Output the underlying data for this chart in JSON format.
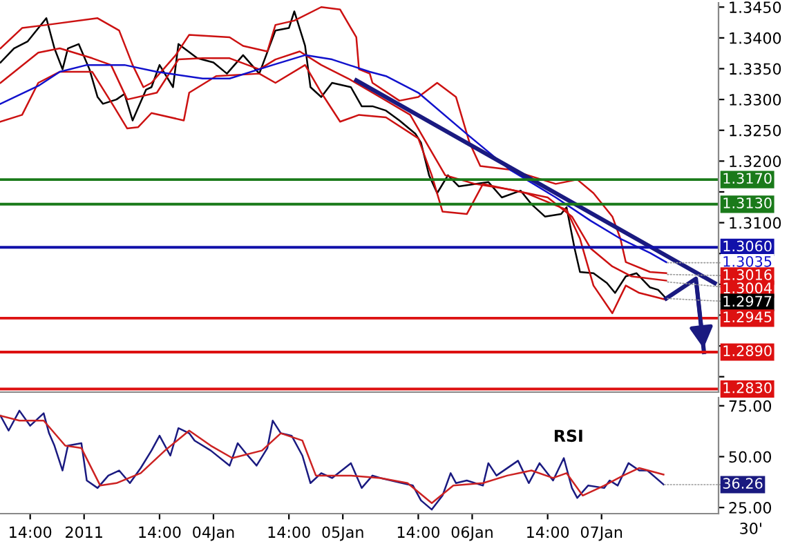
{
  "chart_data": [
    {
      "type": "line",
      "xlim": [
        "2011-01-02T08:24",
        "2011-01-07T21:42"
      ],
      "ylim": [
        1.2825,
        1.3457
      ],
      "tick_labels": "y",
      "yticks": [
        {
          "value": 1.345,
          "label": "1.3450"
        },
        {
          "value": 1.34,
          "label": "1.3400"
        },
        {
          "value": 1.335,
          "label": "1.3350"
        },
        {
          "value": 1.33,
          "label": "1.3300"
        },
        {
          "value": 1.325,
          "label": "1.3250"
        },
        {
          "value": 1.32,
          "label": "1.3200"
        },
        {
          "value": 1.315,
          "label": null
        },
        {
          "value": 1.31,
          "label": "1.3100"
        },
        {
          "value": 1.305,
          "label": null
        },
        {
          "value": 1.3,
          "label": null
        },
        {
          "value": 1.295,
          "label": null
        },
        {
          "value": 1.29,
          "label": null
        },
        {
          "value": 1.285,
          "label": null
        }
      ],
      "series": [
        {
          "color": "#000000",
          "x": [
            "2011-01-02T08:30",
            "2011-01-02T11:00",
            "2011-01-02T13:30",
            "2011-01-02T17:00",
            "2011-01-02T18:30",
            "2011-01-02T20:00",
            "2011-01-02T21:00",
            "2011-01-02T23:00",
            "2011-01-03T01:00",
            "2011-01-03T02:30",
            "2011-01-03T03:30",
            "2011-01-03T06:00",
            "2011-01-03T07:30",
            "2011-01-03T09:00",
            "2011-01-03T11:30",
            "2011-01-03T12:30",
            "2011-01-03T14:00",
            "2011-01-03T16:30",
            "2011-01-03T17:30",
            "2011-01-03T21:00",
            "2011-01-04T00:00",
            "2011-01-04T02:30",
            "2011-01-04T05:30",
            "2011-01-04T08:30",
            "2011-01-04T11:30",
            "2011-01-04T14:00",
            "2011-01-04T15:00",
            "2011-01-04T17:00",
            "2011-01-04T18:00",
            "2011-01-04T20:00",
            "2011-01-04T22:00",
            "2011-01-05T01:30",
            "2011-01-05T03:30",
            "2011-01-05T05:30",
            "2011-01-05T08:00",
            "2011-01-05T10:30",
            "2011-01-05T13:30",
            "2011-01-05T14:30",
            "2011-01-05T16:00",
            "2011-01-05T17:30",
            "2011-01-05T19:30",
            "2011-01-05T21:30",
            "2011-01-06T03:00",
            "2011-01-06T05:30",
            "2011-01-06T09:00",
            "2011-01-06T11:00",
            "2011-01-06T13:30",
            "2011-01-06T16:30",
            "2011-01-06T17:30",
            "2011-01-06T19:00",
            "2011-01-06T20:00",
            "2011-01-06T22:30",
            "2011-01-07T01:00",
            "2011-01-07T02:30",
            "2011-01-07T04:30",
            "2011-01-07T06:30",
            "2011-01-07T09:00",
            "2011-01-07T10:30",
            "2011-01-07T12:00"
          ],
          "values": [
            1.336,
            1.3383,
            1.3394,
            1.3432,
            1.3383,
            1.3349,
            1.3383,
            1.339,
            1.3349,
            1.3304,
            1.3293,
            1.33,
            1.3309,
            1.3266,
            1.3316,
            1.332,
            1.3356,
            1.332,
            1.339,
            1.3367,
            1.336,
            1.3342,
            1.3372,
            1.3342,
            1.3412,
            1.3416,
            1.3443,
            1.3387,
            1.332,
            1.3304,
            1.3327,
            1.332,
            1.3289,
            1.3289,
            1.3282,
            1.3266,
            1.3244,
            1.323,
            1.3177,
            1.3148,
            1.3177,
            1.3159,
            1.3166,
            1.3141,
            1.3152,
            1.313,
            1.311,
            1.3114,
            1.3125,
            1.3058,
            1.302,
            1.3018,
            1.3002,
            1.2986,
            1.3013,
            1.3018,
            1.2995,
            1.2991,
            1.2977
          ]
        },
        {
          "color": "#cc1111",
          "x": [
            "2011-01-02T08:30",
            "2011-01-02T12:30",
            "2011-01-02T17:00",
            "2011-01-03T02:30",
            "2011-01-03T06:30",
            "2011-01-03T09:00",
            "2011-01-03T11:00",
            "2011-01-03T12:30",
            "2011-01-03T17:00",
            "2011-01-03T19:30",
            "2011-01-04T03:00",
            "2011-01-04T05:30",
            "2011-01-04T10:00",
            "2011-01-04T11:30",
            "2011-01-04T15:00",
            "2011-01-04T20:00",
            "2011-01-04T23:30",
            "2011-01-05T02:30",
            "2011-01-05T03:00",
            "2011-01-05T05:00",
            "2011-01-05T05:30",
            "2011-01-05T10:30",
            "2011-01-05T14:00",
            "2011-01-05T17:30",
            "2011-01-05T21:00",
            "2011-01-05T23:30",
            "2011-01-06T01:30",
            "2011-01-06T07:00",
            "2011-01-06T15:30",
            "2011-01-06T19:30",
            "2011-01-06T22:30",
            "2011-01-07T02:00",
            "2011-01-07T03:30",
            "2011-01-07T04:30",
            "2011-01-07T09:00",
            "2011-01-07T12:00"
          ],
          "values": [
            1.3383,
            1.3416,
            1.3421,
            1.3432,
            1.3412,
            1.3356,
            1.332,
            1.3327,
            1.3372,
            1.3405,
            1.3401,
            1.3387,
            1.3378,
            1.3421,
            1.3428,
            1.345,
            1.3446,
            1.3401,
            1.3349,
            1.3342,
            1.3327,
            1.3298,
            1.3304,
            1.3327,
            1.3304,
            1.323,
            1.3192,
            1.3186,
            1.3163,
            1.317,
            1.3148,
            1.311,
            1.3074,
            1.3036,
            1.302,
            1.3018
          ]
        },
        {
          "color": "#cc1111",
          "x": [
            "2011-01-02T08:30",
            "2011-01-02T15:30",
            "2011-01-02T19:30",
            "2011-01-03T01:30",
            "2011-01-03T05:00",
            "2011-01-03T08:00",
            "2011-01-03T13:30",
            "2011-01-03T17:30",
            "2011-01-03T22:00",
            "2011-01-04T03:00",
            "2011-01-04T08:30",
            "2011-01-04T11:30",
            "2011-01-04T16:00",
            "2011-01-04T20:00",
            "2011-01-05T01:00",
            "2011-01-05T05:30",
            "2011-01-05T12:30",
            "2011-01-05T16:00",
            "2011-01-05T19:00",
            "2011-01-06T00:30",
            "2011-01-06T07:00",
            "2011-01-06T14:00",
            "2011-01-06T18:30",
            "2011-01-06T22:00",
            "2011-01-07T02:00",
            "2011-01-07T05:30",
            "2011-01-07T12:00"
          ],
          "values": [
            1.3327,
            1.3376,
            1.3383,
            1.3367,
            1.3356,
            1.33,
            1.3311,
            1.3365,
            1.3367,
            1.3367,
            1.3349,
            1.3365,
            1.3378,
            1.3356,
            1.3334,
            1.3311,
            1.3275,
            1.3222,
            1.3177,
            1.3163,
            1.3154,
            1.3141,
            1.311,
            1.3058,
            1.3029,
            1.3013,
            1.3006
          ]
        },
        {
          "color": "#cc1111",
          "x": [
            "2011-01-02T08:30",
            "2011-01-02T12:30",
            "2011-01-02T15:30",
            "2011-01-02T19:30",
            "2011-01-03T01:30",
            "2011-01-03T05:30",
            "2011-01-03T08:00",
            "2011-01-03T10:00",
            "2011-01-03T12:30",
            "2011-01-03T18:30",
            "2011-01-03T19:30",
            "2011-01-04T00:30",
            "2011-01-04T08:30",
            "2011-01-04T11:30",
            "2011-01-04T17:00",
            "2011-01-04T20:00",
            "2011-01-04T23:30",
            "2011-01-05T03:00",
            "2011-01-05T08:00",
            "2011-01-05T14:00",
            "2011-01-05T16:30",
            "2011-01-05T18:30",
            "2011-01-05T23:00",
            "2011-01-06T02:00",
            "2011-01-06T10:00",
            "2011-01-06T17:30",
            "2011-01-06T20:00",
            "2011-01-06T22:30",
            "2011-01-07T02:00",
            "2011-01-07T04:30",
            "2011-01-07T07:00",
            "2011-01-07T12:00"
          ],
          "values": [
            1.3264,
            1.3275,
            1.3327,
            1.3345,
            1.3345,
            1.3289,
            1.3253,
            1.3255,
            1.3278,
            1.3266,
            1.3311,
            1.3338,
            1.3342,
            1.3327,
            1.3356,
            1.3311,
            1.3264,
            1.3275,
            1.3271,
            1.3237,
            1.3177,
            1.3118,
            1.3114,
            1.3163,
            1.3148,
            1.3121,
            1.3074,
            1.2998,
            1.2953,
            1.2998,
            1.2986,
            1.2975
          ]
        },
        {
          "color": "#1111cc",
          "x": [
            "2011-01-02T08:30",
            "2011-01-02T15:30",
            "2011-01-02T19:30",
            "2011-01-03T00:30",
            "2011-01-03T07:30",
            "2011-01-03T13:30",
            "2011-01-03T22:00",
            "2011-01-04T03:00",
            "2011-01-04T11:00",
            "2011-01-04T17:00",
            "2011-01-04T22:00",
            "2011-01-05T05:00",
            "2011-01-05T08:00",
            "2011-01-05T14:00",
            "2011-01-05T23:00",
            "2011-01-06T07:00",
            "2011-01-06T15:30",
            "2011-01-06T22:00",
            "2011-01-07T03:30",
            "2011-01-07T09:00",
            "2011-01-07T12:00"
          ],
          "values": [
            1.3293,
            1.3322,
            1.3345,
            1.3356,
            1.3356,
            1.3345,
            1.3334,
            1.3334,
            1.3356,
            1.3372,
            1.3365,
            1.3345,
            1.3338,
            1.3311,
            1.3244,
            1.3186,
            1.3141,
            1.3103,
            1.3074,
            1.3051,
            1.3036
          ]
        },
        {
          "color": "#1a1a80",
          "x": [
            "2011-01-05T02:30",
            "2011-01-07T21:00"
          ],
          "values": [
            1.3331,
            1.3002
          ]
        },
        {
          "color": "#1a1a80",
          "x": [
            "2011-01-07T12:00",
            "2011-01-07T17:30",
            "2011-01-07T19:00"
          ],
          "values": [
            1.2977,
            1.3009,
            1.289
          ]
        }
      ],
      "ref_lines": [
        {
          "axis": "y",
          "value": 1.317,
          "label": "1.3170",
          "color": "#1a7a1a"
        },
        {
          "axis": "y",
          "value": 1.313,
          "label": "1.3130",
          "color": "#1a7a1a"
        },
        {
          "axis": "y",
          "value": 1.306,
          "label": "1.3060",
          "color": "#1111aa"
        },
        {
          "axis": "y",
          "value": 1.2945,
          "label": "1.2945",
          "color": "#dd1111"
        },
        {
          "axis": "y",
          "value": 1.289,
          "label": "1.2890",
          "color": "#dd1111"
        },
        {
          "axis": "y",
          "value": 1.283,
          "label": "1.2830",
          "color": "#dd1111"
        }
      ],
      "annotations": [
        {
          "text": "1.3035",
          "x": "2011-01-07T12:00",
          "y": 1.3035
        },
        {
          "text": "1.3016",
          "x": "2011-01-07T12:00",
          "y": 1.3016
        },
        {
          "text": "1.3004",
          "x": "2011-01-07T12:00",
          "y": 1.3004
        },
        {
          "text": "1.2977",
          "x": "2011-01-07T12:00",
          "y": 1.2977
        }
      ]
    },
    {
      "type": "line",
      "xlim": [
        "2011-01-02T08:24",
        "2011-01-07T21:42"
      ],
      "ylim": [
        22,
        79
      ],
      "yticks": [
        {
          "value": 75,
          "label": "75.00"
        },
        {
          "value": 50,
          "label": "50.00"
        },
        {
          "value": 25,
          "label": "25.00"
        }
      ],
      "xticks": [
        {
          "value": "2011-01-02T14:00",
          "label": "14:00"
        },
        {
          "value": "2011-01-03T00:00",
          "label": "2011"
        },
        {
          "value": "2011-01-03T14:00",
          "label": "14:00"
        },
        {
          "value": "2011-01-04T00:00",
          "label": "04Jan"
        },
        {
          "value": "2011-01-04T14:00",
          "label": "14:00"
        },
        {
          "value": "2011-01-05T00:00",
          "label": "05Jan"
        },
        {
          "value": "2011-01-05T14:00",
          "label": "14:00"
        },
        {
          "value": "2011-01-06T00:00",
          "label": "06Jan"
        },
        {
          "value": "2011-01-06T14:00",
          "label": "14:00"
        },
        {
          "value": "2011-01-07T00:00",
          "label": "07Jan"
        }
      ],
      "series": [
        {
          "color": "#1a1a80",
          "x": [
            "2011-01-02T08:30",
            "2011-01-02T10:00",
            "2011-01-02T12:00",
            "2011-01-02T14:00",
            "2011-01-02T16:30",
            "2011-01-02T17:30",
            "2011-01-02T18:30",
            "2011-01-02T20:00",
            "2011-01-02T21:00",
            "2011-01-02T23:30",
            "2011-01-03T00:30",
            "2011-01-03T02:30",
            "2011-01-03T04:30",
            "2011-01-03T06:30",
            "2011-01-03T08:30",
            "2011-01-03T10:30",
            "2011-01-03T12:30",
            "2011-01-03T14:00",
            "2011-01-03T16:00",
            "2011-01-03T17:30",
            "2011-01-03T19:30",
            "2011-01-03T20:30",
            "2011-01-03T23:30",
            "2011-01-04T03:00",
            "2011-01-04T04:30",
            "2011-01-04T06:00",
            "2011-01-04T08:00",
            "2011-01-04T10:00",
            "2011-01-04T11:00",
            "2011-01-04T12:30",
            "2011-01-04T14:30",
            "2011-01-04T16:30",
            "2011-01-04T18:00",
            "2011-01-04T20:00",
            "2011-01-04T22:00",
            "2011-01-05T01:30",
            "2011-01-05T03:30",
            "2011-01-05T05:30",
            "2011-01-05T07:00",
            "2011-01-05T11:00",
            "2011-01-05T13:00",
            "2011-01-05T14:30",
            "2011-01-05T16:30",
            "2011-01-05T18:30",
            "2011-01-05T20:00",
            "2011-01-05T21:00",
            "2011-01-05T23:00",
            "2011-01-06T02:00",
            "2011-01-06T03:00",
            "2011-01-06T04:30",
            "2011-01-06T08:30",
            "2011-01-06T10:30",
            "2011-01-06T12:30",
            "2011-01-06T15:00",
            "2011-01-06T17:00",
            "2011-01-06T18:30",
            "2011-01-06T19:30",
            "2011-01-06T21:30",
            "2011-01-07T00:30",
            "2011-01-07T01:30",
            "2011-01-07T03:00",
            "2011-01-07T05:00",
            "2011-01-07T07:00",
            "2011-01-07T08:30",
            "2011-01-07T11:30"
          ],
          "values": [
            70.1,
            62.8,
            72.6,
            65.2,
            71.3,
            61.5,
            55.4,
            43.2,
            55.4,
            56.6,
            38.3,
            34.6,
            40.7,
            43.2,
            37.0,
            44.4,
            53.0,
            60.3,
            50.5,
            64.0,
            61.5,
            57.9,
            53.0,
            45.6,
            56.6,
            51.7,
            45.6,
            54.2,
            67.7,
            61.5,
            60.3,
            50.5,
            37.0,
            41.9,
            39.5,
            46.8,
            34.6,
            40.7,
            39.5,
            37.0,
            35.8,
            28.5,
            24.0,
            30.9,
            41.9,
            37.0,
            38.3,
            35.8,
            46.8,
            40.7,
            48.0,
            37.0,
            46.8,
            38.3,
            49.3,
            34.6,
            29.7,
            35.8,
            34.6,
            38.3,
            35.8,
            46.8,
            43.2,
            43.2,
            36.3
          ]
        },
        {
          "color": "#cc2222",
          "x": [
            "2011-01-02T08:30",
            "2011-01-02T12:00",
            "2011-01-02T16:30",
            "2011-01-02T20:30",
            "2011-01-02T23:30",
            "2011-01-03T03:00",
            "2011-01-03T06:00",
            "2011-01-03T10:30",
            "2011-01-03T15:00",
            "2011-01-03T19:30",
            "2011-01-03T23:30",
            "2011-01-04T03:30",
            "2011-01-04T09:00",
            "2011-01-04T12:30",
            "2011-01-04T16:30",
            "2011-01-04T19:00",
            "2011-01-05T01:30",
            "2011-01-05T07:00",
            "2011-01-05T12:00",
            "2011-01-05T16:30",
            "2011-01-05T20:30",
            "2011-01-06T02:00",
            "2011-01-06T06:30",
            "2011-01-06T11:00",
            "2011-01-06T15:00",
            "2011-01-06T17:30",
            "2011-01-06T20:30",
            "2011-01-07T00:30",
            "2011-01-07T04:00",
            "2011-01-07T07:00",
            "2011-01-07T11:30"
          ],
          "values": [
            70.1,
            67.7,
            67.7,
            55.4,
            54.2,
            35.8,
            37.0,
            41.9,
            53.0,
            62.8,
            55.4,
            49.3,
            53.0,
            61.5,
            57.9,
            40.7,
            40.7,
            39.5,
            37.0,
            27.2,
            35.8,
            37.0,
            40.7,
            43.2,
            39.5,
            41.9,
            30.9,
            35.8,
            40.7,
            44.4,
            41.2
          ]
        }
      ],
      "annotations": [
        {
          "text": "36.26",
          "x": "2011-01-07T11:30",
          "y": 36.26
        },
        "RSI"
      ],
      "xlabel": "30'"
    }
  ]
}
